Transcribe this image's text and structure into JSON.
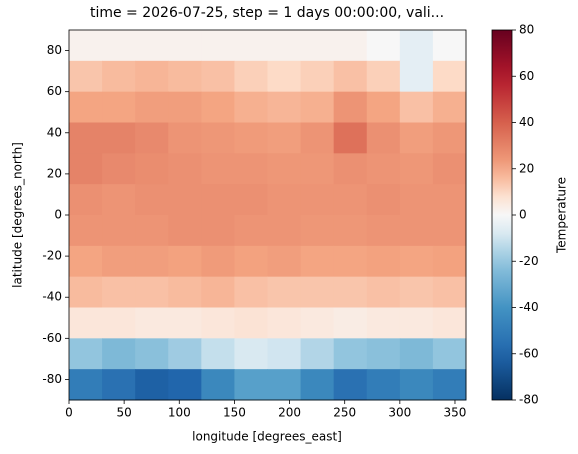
{
  "chart_data": {
    "type": "heatmap",
    "title": "time = 2026-07-25, step = 1 days 00:00:00, vali...",
    "x_label": "longitude [degrees_east]",
    "y_label": "latitude [degrees_north]",
    "colorbar_label": "Temperature",
    "colormap": "RdBu_r",
    "x": [
      15,
      45,
      75,
      105,
      135,
      165,
      195,
      225,
      255,
      285,
      315,
      345
    ],
    "y": [
      82.5,
      67.5,
      52.5,
      37.5,
      22.5,
      7.5,
      -7.5,
      -22.5,
      -37.5,
      -52.5,
      -67.5,
      -82.5
    ],
    "values": [
      [
        2,
        2,
        2,
        2,
        2,
        2,
        2,
        2,
        2,
        0,
        -5,
        0
      ],
      [
        14,
        16,
        17,
        16,
        15,
        12,
        10,
        12,
        15,
        12,
        -5,
        10
      ],
      [
        20,
        20,
        22,
        22,
        20,
        18,
        17,
        18,
        25,
        20,
        15,
        18
      ],
      [
        30,
        30,
        28,
        25,
        24,
        23,
        22,
        25,
        35,
        26,
        22,
        24
      ],
      [
        30,
        28,
        27,
        26,
        25,
        25,
        24,
        24,
        26,
        25,
        24,
        26
      ],
      [
        26,
        25,
        26,
        26,
        26,
        26,
        25,
        25,
        25,
        26,
        25,
        25
      ],
      [
        25,
        25,
        25,
        26,
        26,
        25,
        25,
        24,
        24,
        25,
        25,
        25
      ],
      [
        20,
        22,
        22,
        21,
        23,
        21,
        22,
        20,
        20,
        21,
        20,
        21
      ],
      [
        16,
        15,
        15,
        16,
        17,
        15,
        14,
        14,
        14,
        15,
        14,
        15
      ],
      [
        6,
        6,
        5,
        5,
        6,
        7,
        6,
        5,
        4,
        5,
        5,
        6
      ],
      [
        -20,
        -25,
        -22,
        -18,
        -12,
        -8,
        -10,
        -15,
        -20,
        -22,
        -25,
        -20
      ],
      [
        -50,
        -55,
        -62,
        -60,
        -45,
        -35,
        -35,
        -45,
        -55,
        -50,
        -45,
        -50
      ]
    ],
    "xlim": [
      0,
      360
    ],
    "ylim": [
      -90,
      90
    ],
    "xticks": [
      0,
      50,
      100,
      150,
      200,
      250,
      300,
      350
    ],
    "yticks": [
      -80,
      -60,
      -40,
      -20,
      0,
      20,
      40,
      60,
      80
    ],
    "clim": [
      -80,
      80
    ],
    "cticks": [
      -80,
      -60,
      -40,
      -20,
      0,
      20,
      40,
      60,
      80
    ]
  }
}
